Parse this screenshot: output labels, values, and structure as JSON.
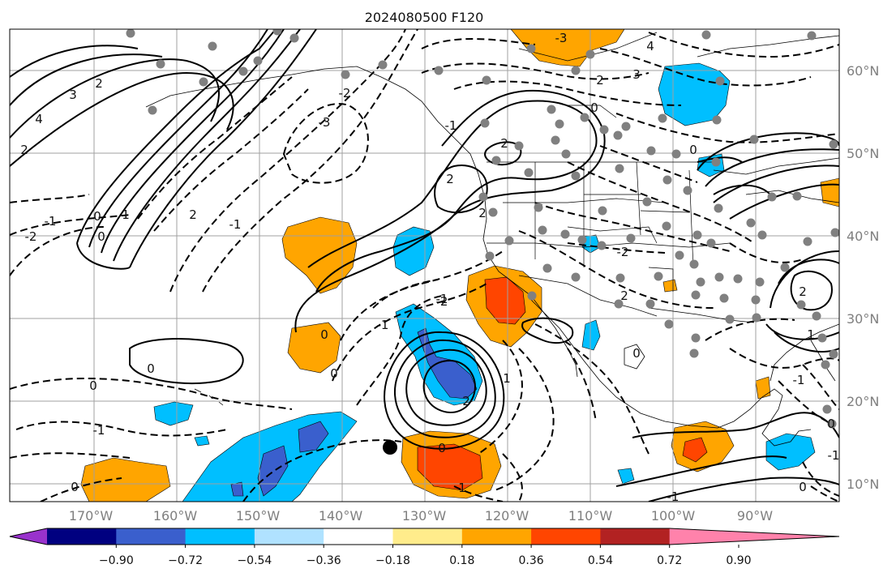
{
  "title": "2024080500 F120",
  "lat_labels": [
    "60°N",
    "50°N",
    "40°N",
    "30°N",
    "20°N",
    "10°N"
  ],
  "lon_labels": [
    "170°W",
    "160°W",
    "150°W",
    "140°W",
    "130°W",
    "120°W",
    "110°W",
    "100°W",
    "90°W"
  ],
  "colorbar": {
    "colors": [
      "#9932cc",
      "#000080",
      "#3a5fcd",
      "#00bfff",
      "#b0e2ff",
      "#ffffff",
      "#ffec8b",
      "#ffa500",
      "#ff4500",
      "#b22222",
      "#ff82ab"
    ],
    "tick_labels": [
      "−0.90",
      "−0.72",
      "−0.54",
      "−0.36",
      "−0.18",
      "0.18",
      "0.36",
      "0.54",
      "0.72",
      "0.90"
    ]
  },
  "contour_labels": [
    "4",
    "3",
    "2",
    "2",
    "-1",
    "-2",
    "0",
    "0",
    "1",
    "-3",
    "-2",
    "2",
    "-1",
    "3",
    "2",
    "4",
    "-3",
    "2",
    "0",
    "2",
    "2",
    "-1",
    "-1",
    "0",
    "0",
    "-1",
    "0",
    "-2",
    "2",
    "0",
    "-1",
    "0",
    "0",
    "1",
    "-2",
    "2",
    "0",
    "1",
    "2",
    "1",
    "-1",
    "0",
    "-1",
    "0",
    "-1",
    "0"
  ]
}
